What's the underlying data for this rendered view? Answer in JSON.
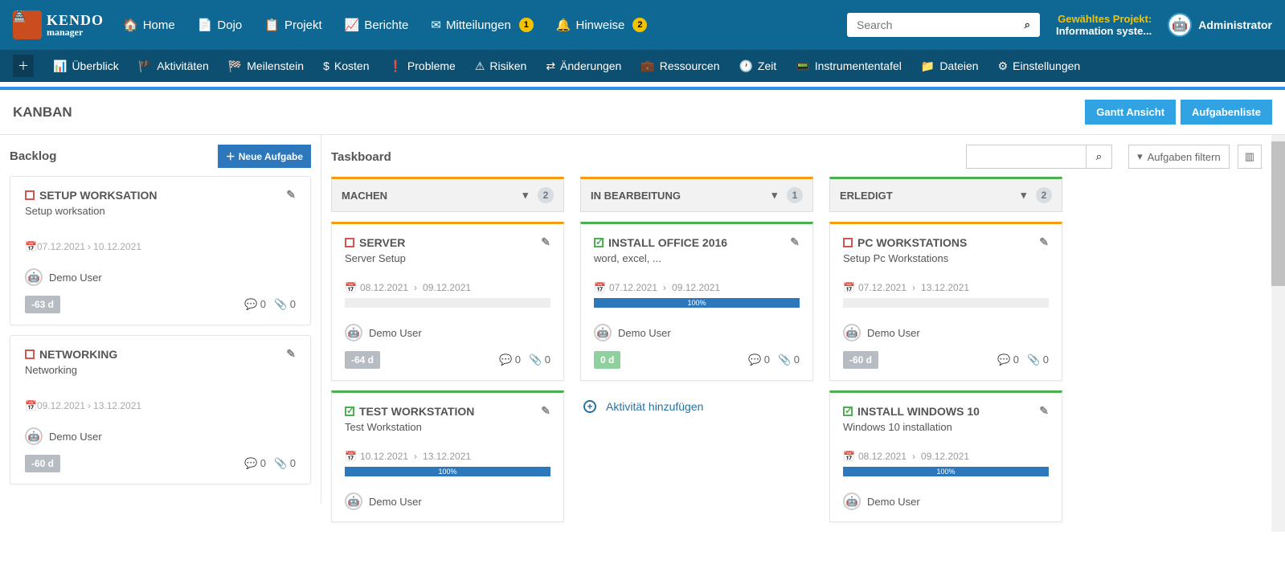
{
  "logo": {
    "line1": "KENDO",
    "line2": "manager"
  },
  "topnav": {
    "home": "Home",
    "dojo": "Dojo",
    "project": "Projekt",
    "reports": "Berichte",
    "messages": "Mitteilungen",
    "messages_badge": "1",
    "hints": "Hinweise",
    "hints_badge": "2"
  },
  "search_placeholder": "Search",
  "selected_project": {
    "label": "Gewähltes Projekt:",
    "value": "Information syste..."
  },
  "user": "Administrator",
  "subnav": {
    "overview": "Überblick",
    "activities": "Aktivitäten",
    "milestones": "Meilenstein",
    "costs": "Kosten",
    "problems": "Probleme",
    "risks": "Risiken",
    "changes": "Änderungen",
    "resources": "Ressourcen",
    "time": "Zeit",
    "dashboard": "Instrumententafel",
    "files": "Dateien",
    "settings": "Einstellungen"
  },
  "page": {
    "title": "KANBAN",
    "gantt_btn": "Gantt Ansicht",
    "tasklist_btn": "Aufgabenliste"
  },
  "backlog": {
    "title": "Backlog",
    "new_task_btn": "Neue Aufgabe",
    "cards": [
      {
        "title": "SETUP WORKSATION",
        "desc": "Setup worksation",
        "start": "07.12.2021",
        "end": "10.12.2021",
        "user": "Demo User",
        "days": "-63 d",
        "comments": "0",
        "attach": "0"
      },
      {
        "title": "NETWORKING",
        "desc": "Networking",
        "start": "09.12.2021",
        "end": "13.12.2021",
        "user": "Demo User",
        "days": "-60 d",
        "comments": "0",
        "attach": "0"
      }
    ]
  },
  "taskboard": {
    "title": "Taskboard",
    "filter_btn": "Aufgaben filtern",
    "add_activity": "Aktivität hinzufügen",
    "columns": [
      {
        "title": "MACHEN",
        "count": "2",
        "border_color": "#f39c12",
        "cards": [
          {
            "title": "SERVER",
            "desc": "Server Setup",
            "done": false,
            "start": "08.12.2021",
            "end": "09.12.2021",
            "progress": 0,
            "progress_label": "",
            "user": "Demo User",
            "days": "-64 d",
            "comments": "0",
            "attach": "0",
            "border_color": "#f39c12"
          },
          {
            "title": "TEST WORKSTATION",
            "desc": "Test Workstation",
            "done": true,
            "start": "10.12.2021",
            "end": "13.12.2021",
            "progress": 100,
            "progress_label": "100%",
            "user": "Demo User",
            "days": "",
            "comments": "",
            "attach": "",
            "border_color": "#4caf50"
          }
        ]
      },
      {
        "title": "IN BEARBEITUNG",
        "count": "1",
        "border_color": "#f39c12",
        "cards": [
          {
            "title": "INSTALL OFFICE 2016",
            "desc": "word, excel, ...",
            "done": true,
            "start": "07.12.2021",
            "end": "09.12.2021",
            "progress": 100,
            "progress_label": "100%",
            "user": "Demo User",
            "days": "0 d",
            "days_green": true,
            "comments": "0",
            "attach": "0",
            "border_color": "#4caf50"
          }
        ],
        "show_add": true
      },
      {
        "title": "ERLEDIGT",
        "count": "2",
        "border_color": "#4caf50",
        "cards": [
          {
            "title": "PC WORKSTATIONS",
            "desc": "Setup Pc Workstations",
            "done": false,
            "start": "07.12.2021",
            "end": "13.12.2021",
            "progress": 0,
            "progress_label": "",
            "user": "Demo User",
            "days": "-60 d",
            "comments": "0",
            "attach": "0",
            "border_color": "#f39c12"
          },
          {
            "title": "INSTALL WINDOWS 10",
            "desc": "Windows 10 installation",
            "done": true,
            "start": "08.12.2021",
            "end": "09.12.2021",
            "progress": 100,
            "progress_label": "100%",
            "user": "Demo User",
            "days": "",
            "comments": "",
            "attach": "",
            "border_color": "#4caf50"
          }
        ]
      }
    ]
  }
}
